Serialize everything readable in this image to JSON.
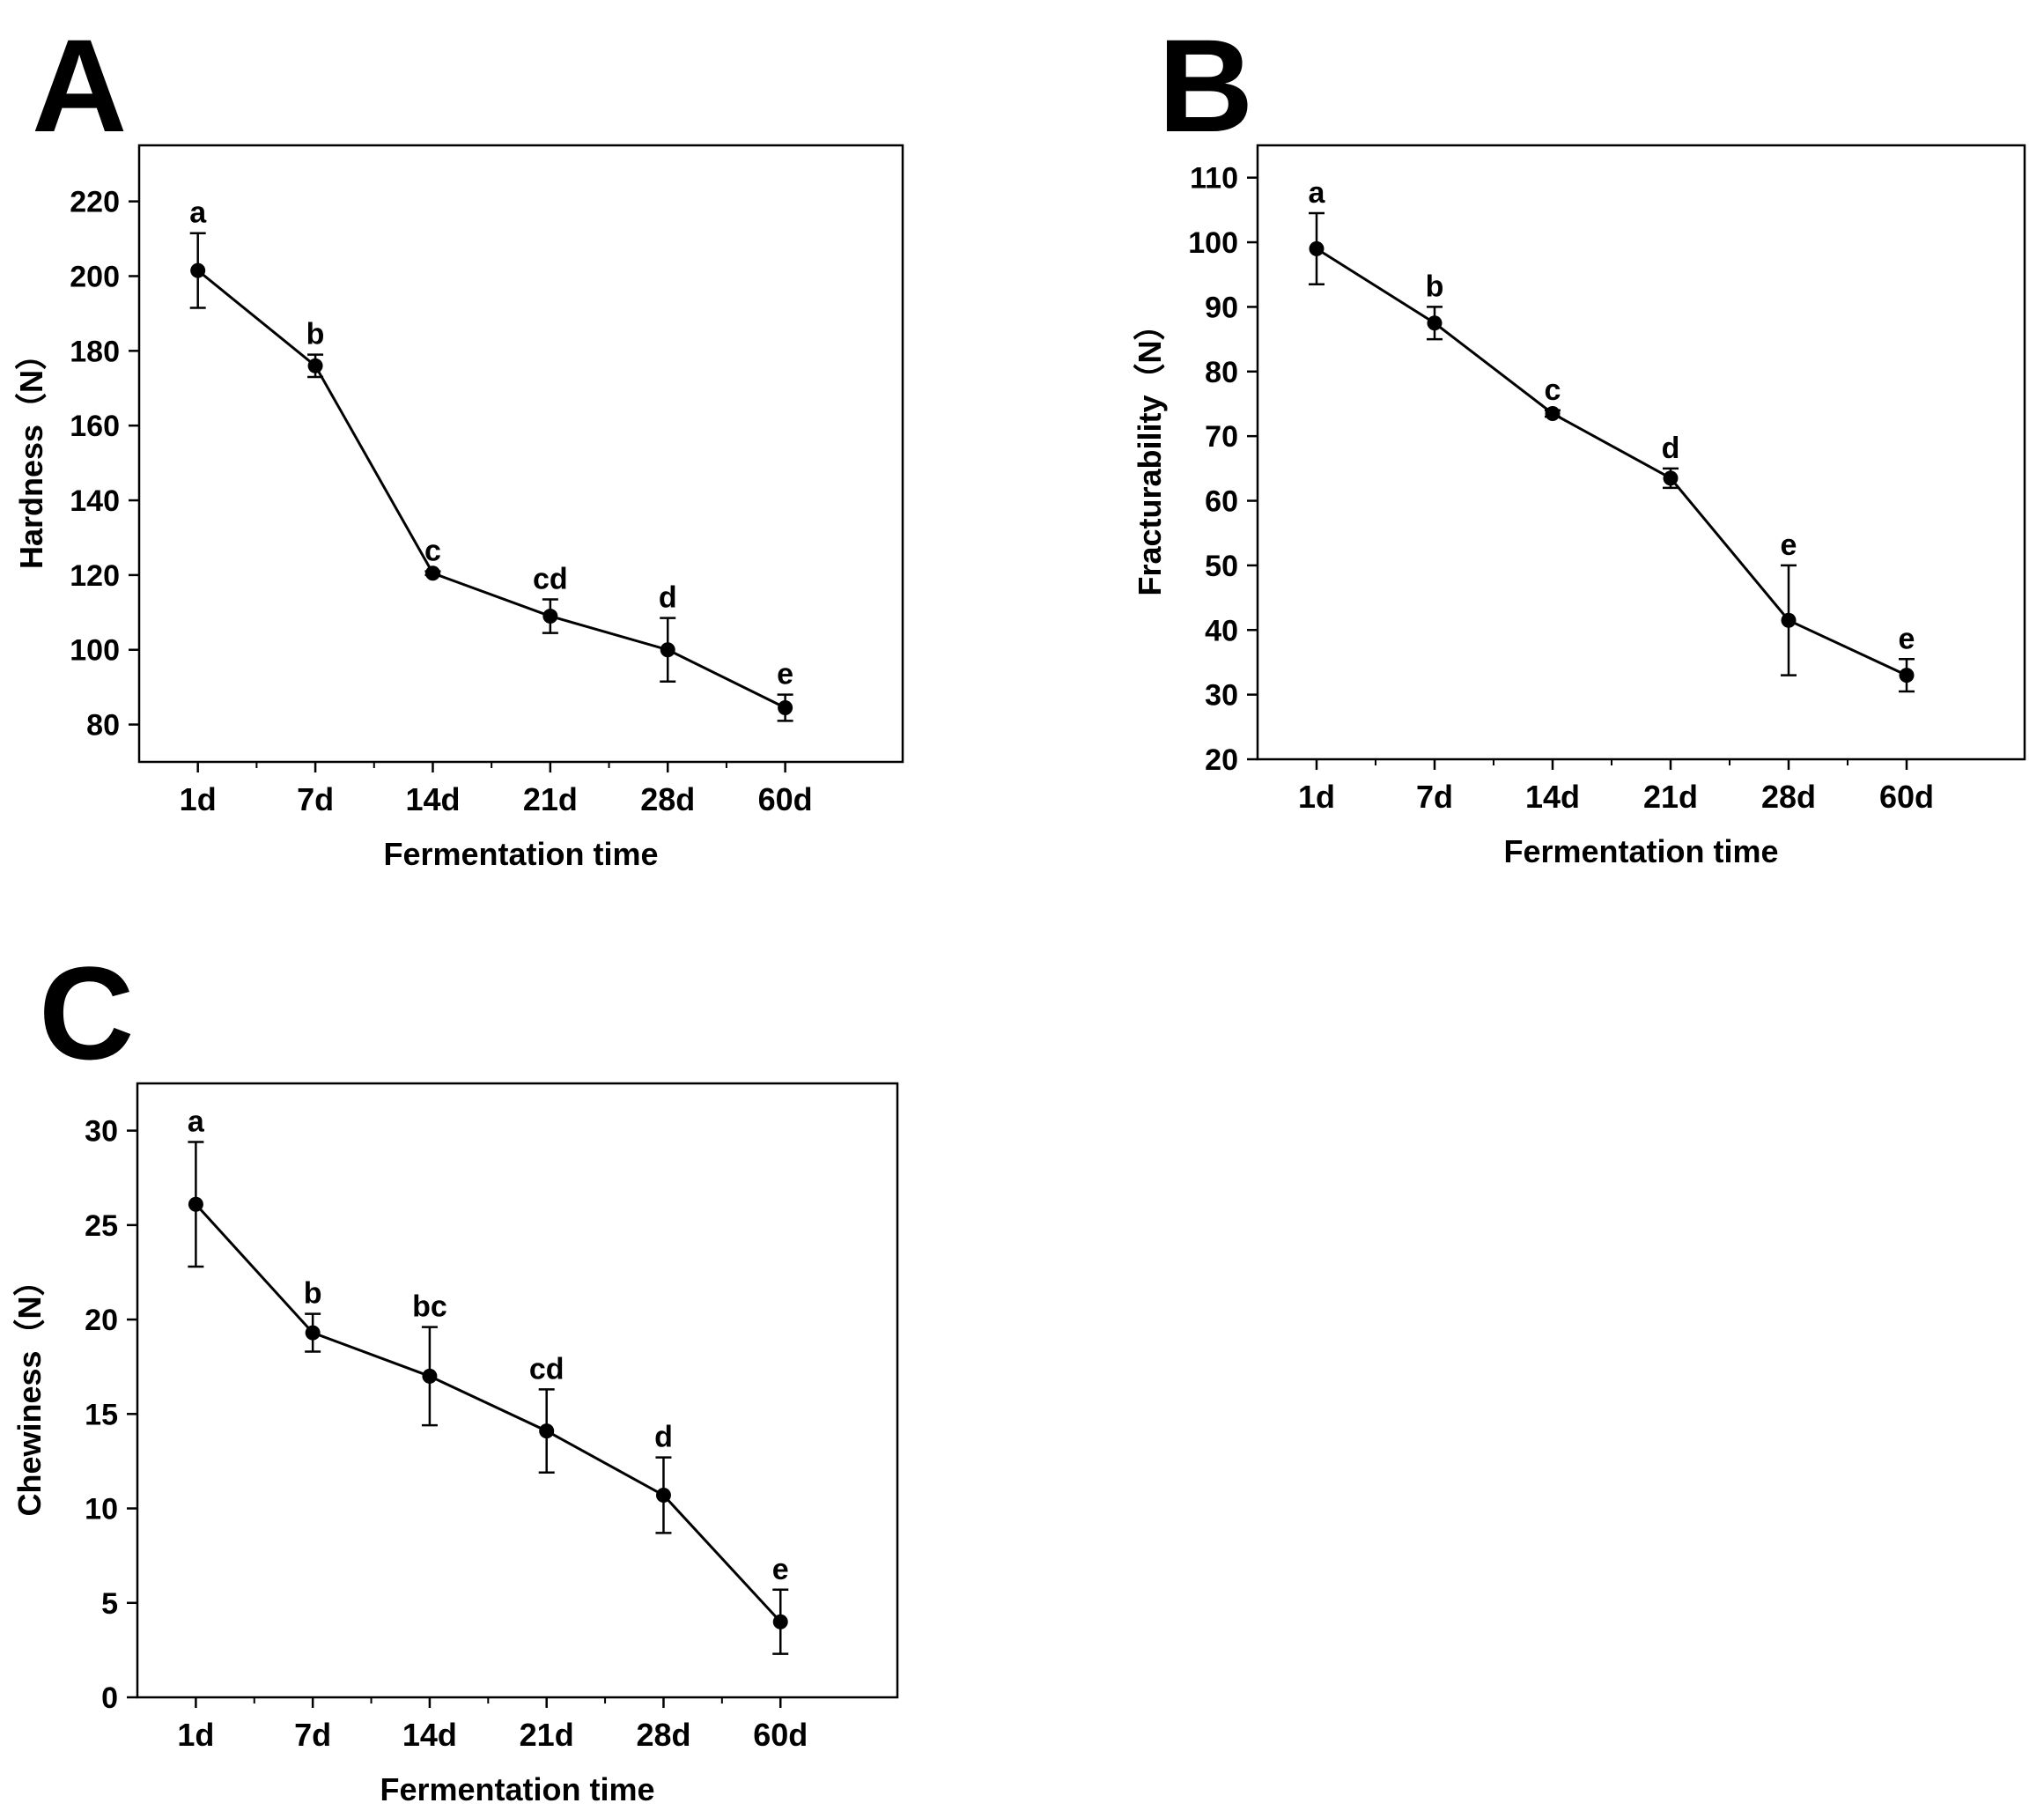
{
  "panels": [
    {
      "letter": "A"
    },
    {
      "letter": "B"
    },
    {
      "letter": "C"
    }
  ],
  "chart_data": [
    {
      "panel": "A",
      "type": "line",
      "title": "",
      "xlabel": "Fermentation time",
      "ylabel": "Hardness（N）",
      "categories": [
        "1d",
        "7d",
        "14d",
        "21d",
        "28d",
        "60d"
      ],
      "values": [
        201.5,
        176,
        120.5,
        109,
        100,
        84.5
      ],
      "errors": [
        10,
        3,
        0.5,
        4.5,
        8.5,
        3.5
      ],
      "significance": [
        "a",
        "b",
        "c",
        "cd",
        "d",
        "e"
      ],
      "ylim": [
        70,
        235
      ],
      "yticks": [
        80,
        100,
        120,
        140,
        160,
        180,
        200,
        220
      ],
      "grid": false,
      "line_color": "#000000"
    },
    {
      "panel": "B",
      "type": "line",
      "title": "",
      "xlabel": "Fermentation time",
      "ylabel": "Fracturability（N）",
      "categories": [
        "1d",
        "7d",
        "14d",
        "21d",
        "28d",
        "60d"
      ],
      "values": [
        99,
        87.5,
        73.5,
        63.5,
        41.5,
        33
      ],
      "errors": [
        5.5,
        2.5,
        0.5,
        1.5,
        8.5,
        2.5
      ],
      "significance": [
        "a",
        "b",
        "c",
        "d",
        "e",
        "e"
      ],
      "ylim": [
        20,
        115
      ],
      "yticks": [
        20,
        30,
        40,
        50,
        60,
        70,
        80,
        90,
        100,
        110
      ],
      "grid": false,
      "line_color": "#000000"
    },
    {
      "panel": "C",
      "type": "line",
      "title": "",
      "xlabel": "Fermentation time",
      "ylabel": "Chewiness（N）",
      "categories": [
        "1d",
        "7d",
        "14d",
        "21d",
        "28d",
        "60d"
      ],
      "values": [
        26.1,
        19.3,
        17,
        14.1,
        10.7,
        4
      ],
      "errors": [
        3.3,
        1,
        2.6,
        2.2,
        2,
        1.7
      ],
      "significance": [
        "a",
        "b",
        "bc",
        "cd",
        "d",
        "e"
      ],
      "ylim": [
        0,
        32.5
      ],
      "yticks": [
        0,
        5,
        10,
        15,
        20,
        25,
        30
      ],
      "grid": false,
      "line_color": "#000000"
    }
  ]
}
